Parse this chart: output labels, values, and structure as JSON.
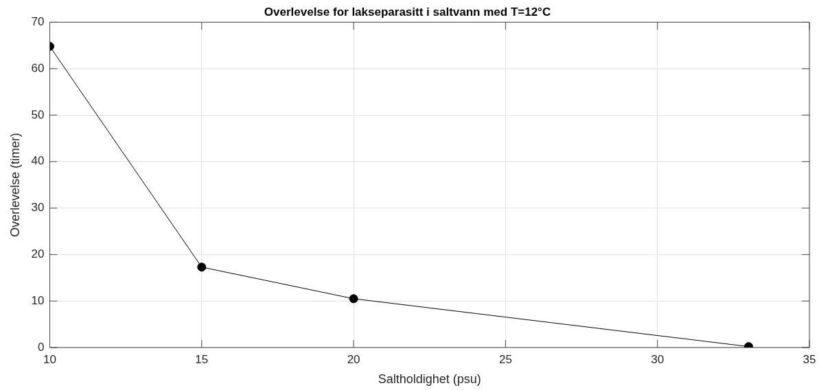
{
  "chart_data": {
    "type": "line",
    "title": "Overlevelse for lakseparasitt i saltvann med T=12°C",
    "xlabel": "Saltholdighet (psu)",
    "ylabel": "Overlevelse (timer)",
    "x": [
      10,
      15,
      20,
      33
    ],
    "series": [
      {
        "color": "#000000",
        "values": [
          64.8,
          17.3,
          10.5,
          0.2
        ]
      }
    ],
    "xlim": [
      10,
      35
    ],
    "xticks": [
      10,
      15,
      20,
      25,
      30,
      35
    ],
    "ylim": [
      0,
      70
    ],
    "yticks": [
      0,
      10,
      20,
      30,
      40,
      50,
      60,
      70
    ],
    "grid": true,
    "legend": false,
    "marker": "circle",
    "line_style": "solid"
  }
}
